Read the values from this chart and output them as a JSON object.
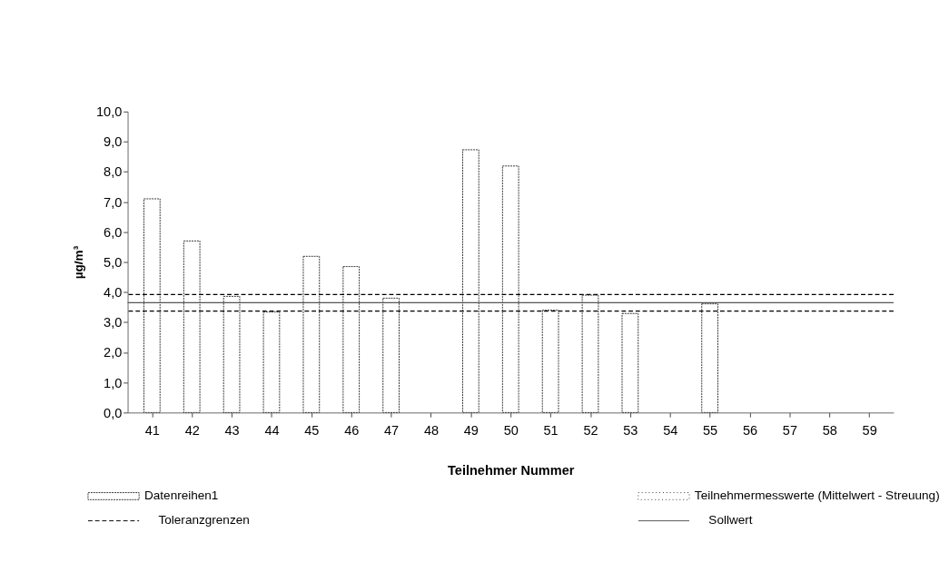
{
  "chart_data": {
    "type": "bar",
    "xlabel": "Teilnehmer Nummer",
    "ylabel": "µg/m³",
    "categories": [
      "41",
      "42",
      "43",
      "44",
      "45",
      "46",
      "47",
      "48",
      "49",
      "50",
      "51",
      "52",
      "53",
      "54",
      "55",
      "56",
      "57",
      "58",
      "59"
    ],
    "series": [
      {
        "name": "Datenreihen1",
        "color": "#ffffff",
        "values": [
          7.1,
          5.7,
          3.86,
          3.34,
          5.19,
          4.85,
          3.8,
          null,
          8.73,
          8.19,
          3.4,
          3.9,
          3.29,
          null,
          3.61,
          null,
          null,
          null,
          null
        ]
      },
      {
        "name": "Teilnehmermesswerte (Mittelwert - Streuung)",
        "color": "#ffffff",
        "values": [
          null,
          null,
          null,
          null,
          null,
          null,
          null,
          null,
          null,
          null,
          null,
          null,
          null,
          null,
          null,
          null,
          null,
          null,
          null
        ]
      }
    ],
    "ylim": [
      0,
      10
    ],
    "yticks": [
      {
        "value": 0,
        "label": "0,0"
      },
      {
        "value": 1,
        "label": "1,0"
      },
      {
        "value": 2,
        "label": "2,0"
      },
      {
        "value": 3,
        "label": "3,0"
      },
      {
        "value": 4,
        "label": "4,0"
      },
      {
        "value": 5,
        "label": "5,0"
      },
      {
        "value": 6,
        "label": "6,0"
      },
      {
        "value": 7,
        "label": "7,0"
      },
      {
        "value": 8,
        "label": "8,0"
      },
      {
        "value": 9,
        "label": "9,0"
      },
      {
        "value": 10,
        "label": "10,0"
      }
    ],
    "ref_lines": [
      {
        "axis": "y",
        "value": 3.37,
        "label": "Toleranzgrenzen",
        "color": "#000000",
        "line_style": "dashed"
      },
      {
        "axis": "y",
        "value": 3.92,
        "color": "#000000",
        "line_style": "dashed"
      },
      {
        "axis": "y",
        "value": 3.65,
        "label": "Sollwert",
        "color": "#555555",
        "line_style": "solid"
      }
    ],
    "grid": false,
    "legend": "bottom"
  }
}
